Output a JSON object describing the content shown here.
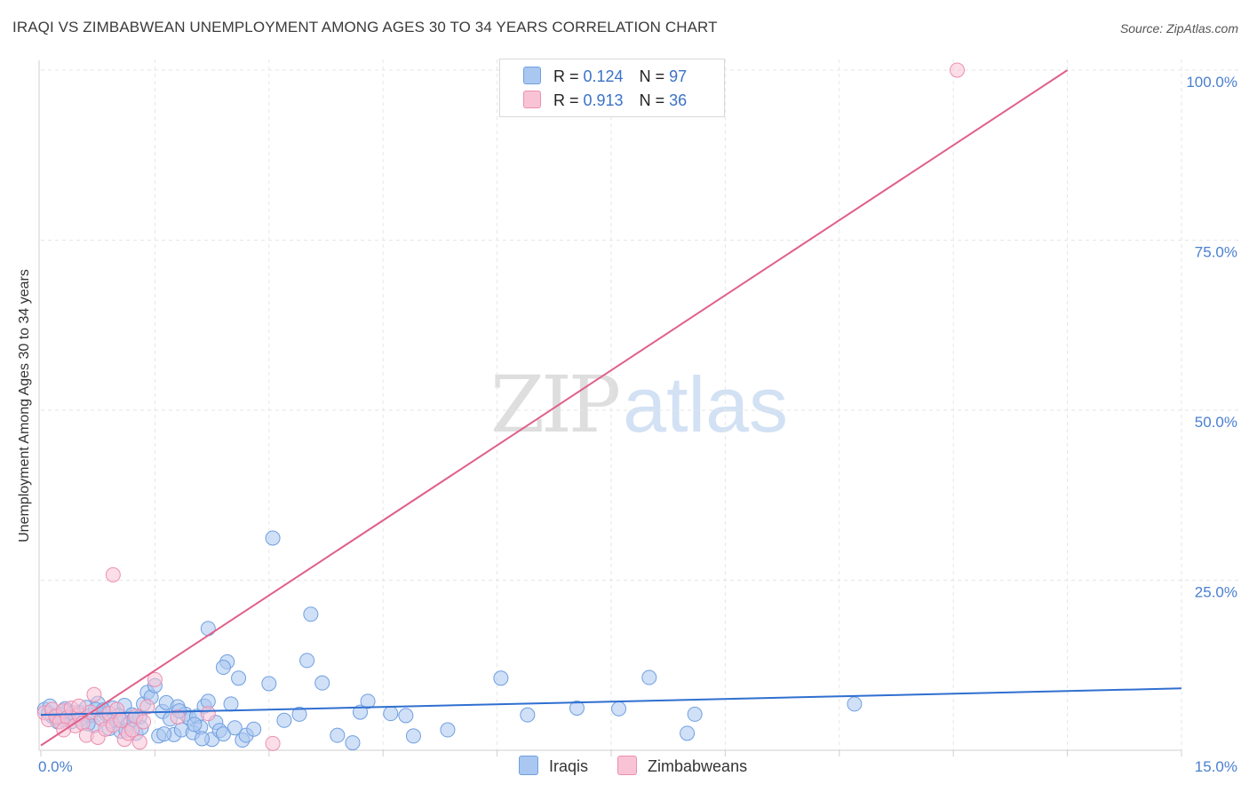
{
  "header": {
    "title": "IRAQI VS ZIMBABWEAN UNEMPLOYMENT AMONG AGES 30 TO 34 YEARS CORRELATION CHART",
    "source": "Source: ZipAtlas.com"
  },
  "watermark": {
    "zip": "ZIP",
    "atlas": "atlas"
  },
  "legend": {
    "rows": [
      {
        "r_label": "R = ",
        "r_value": "0.124",
        "n_label": "N = ",
        "n_value": "97",
        "color": "#a9c7f0",
        "border": "#6f9fe0"
      },
      {
        "r_label": "R = ",
        "r_value": "0.913",
        "n_label": "N = ",
        "n_value": "36",
        "color": "#f9c3d6",
        "border": "#eb8fb0"
      }
    ]
  },
  "bottom_legend": {
    "iraqis": "Iraqis",
    "zimbabweans": "Zimbabweans"
  },
  "chart_data": {
    "type": "scatter",
    "title": "IRAQI VS ZIMBABWEAN UNEMPLOYMENT AMONG AGES 30 TO 34 YEARS CORRELATION CHART",
    "xlabel": "",
    "ylabel": "Unemployment Among Ages 30 to 34 years",
    "xlim": [
      0,
      15
    ],
    "ylim": [
      0,
      100
    ],
    "x_tick_labels": {
      "min": "0.0%",
      "max": "15.0%"
    },
    "y_ticks": [
      {
        "value": 100,
        "label": "100.0%"
      },
      {
        "value": 75,
        "label": "75.0%"
      },
      {
        "value": 50,
        "label": "50.0%"
      },
      {
        "value": 25,
        "label": "25.0%"
      }
    ],
    "colors": {
      "iraqis_fill": "#a9c7f0",
      "iraqis_stroke": "#6f9fe0",
      "iraqis_line": "#2f6fd0",
      "zimbabweans_fill": "#f9c3d6",
      "zimbabweans_stroke": "#eb8fb0",
      "zimbabweans_line": "#e0608a",
      "grid": "#e6e6e6"
    },
    "series": [
      {
        "name": "Iraqis",
        "trend": {
          "x0": 0,
          "y0": 5.2,
          "x1": 15,
          "y1": 9.1
        },
        "points": [
          [
            0.05,
            6.0
          ],
          [
            0.1,
            5.5
          ],
          [
            0.15,
            5.0
          ],
          [
            0.2,
            4.8
          ],
          [
            0.25,
            5.3
          ],
          [
            0.3,
            4.5
          ],
          [
            0.35,
            5.8
          ],
          [
            0.4,
            4.2
          ],
          [
            0.45,
            5.0
          ],
          [
            0.5,
            5.6
          ],
          [
            0.55,
            4.0
          ],
          [
            0.6,
            6.3
          ],
          [
            0.65,
            5.1
          ],
          [
            0.7,
            3.6
          ],
          [
            0.75,
            6.9
          ],
          [
            0.8,
            4.7
          ],
          [
            0.85,
            5.4
          ],
          [
            0.9,
            3.2
          ],
          [
            0.95,
            6.2
          ],
          [
            1.0,
            4.4
          ],
          [
            1.05,
            2.8
          ],
          [
            1.1,
            6.6
          ],
          [
            1.15,
            3.9
          ],
          [
            1.2,
            5.2
          ],
          [
            1.25,
            2.5
          ],
          [
            1.3,
            4.9
          ],
          [
            1.35,
            6.8
          ],
          [
            1.4,
            8.5
          ],
          [
            1.45,
            7.8
          ],
          [
            1.5,
            9.5
          ],
          [
            1.55,
            2.1
          ],
          [
            1.6,
            5.7
          ],
          [
            1.65,
            7.0
          ],
          [
            1.7,
            4.6
          ],
          [
            1.75,
            2.3
          ],
          [
            1.8,
            6.4
          ],
          [
            1.85,
            3.0
          ],
          [
            1.9,
            5.3
          ],
          [
            1.95,
            4.8
          ],
          [
            2.0,
            2.6
          ],
          [
            2.05,
            5.0
          ],
          [
            2.1,
            3.4
          ],
          [
            2.15,
            6.5
          ],
          [
            2.2,
            7.2
          ],
          [
            2.25,
            1.6
          ],
          [
            2.3,
            4.1
          ],
          [
            2.2,
            17.9
          ],
          [
            2.35,
            2.9
          ],
          [
            2.4,
            2.4
          ],
          [
            2.45,
            13.0
          ],
          [
            2.5,
            6.8
          ],
          [
            2.55,
            3.3
          ],
          [
            2.6,
            10.6
          ],
          [
            2.65,
            1.5
          ],
          [
            2.7,
            2.2
          ],
          [
            2.4,
            12.2
          ],
          [
            2.8,
            3.1
          ],
          [
            3.0,
            9.8
          ],
          [
            3.05,
            31.2
          ],
          [
            3.2,
            4.4
          ],
          [
            3.4,
            5.3
          ],
          [
            3.5,
            13.2
          ],
          [
            3.55,
            20.0
          ],
          [
            3.7,
            9.9
          ],
          [
            3.9,
            2.2
          ],
          [
            4.1,
            1.1
          ],
          [
            4.2,
            5.6
          ],
          [
            4.3,
            7.2
          ],
          [
            4.6,
            5.4
          ],
          [
            4.8,
            5.1
          ],
          [
            4.9,
            2.1
          ],
          [
            5.35,
            3.0
          ],
          [
            6.05,
            10.6
          ],
          [
            6.4,
            5.2
          ],
          [
            7.05,
            6.2
          ],
          [
            7.6,
            6.1
          ],
          [
            8.0,
            10.7
          ],
          [
            8.5,
            2.5
          ],
          [
            8.6,
            5.3
          ],
          [
            10.7,
            6.8
          ],
          [
            0.12,
            6.5
          ],
          [
            0.22,
            4.2
          ],
          [
            0.32,
            6.1
          ],
          [
            0.42,
            5.5
          ],
          [
            0.52,
            4.6
          ],
          [
            0.62,
            3.9
          ],
          [
            0.72,
            6.0
          ],
          [
            0.82,
            5.9
          ],
          [
            0.92,
            4.3
          ],
          [
            1.02,
            5.1
          ],
          [
            1.12,
            2.9
          ],
          [
            1.22,
            4.5
          ],
          [
            1.32,
            3.3
          ],
          [
            1.62,
            2.4
          ],
          [
            1.82,
            5.8
          ],
          [
            2.02,
            3.8
          ],
          [
            2.12,
            1.7
          ]
        ]
      },
      {
        "name": "Zimbabweans",
        "trend": {
          "x0": 0,
          "y0": 0.7,
          "x1": 13.5,
          "y1": 100
        },
        "points": [
          [
            0.05,
            5.5
          ],
          [
            0.1,
            4.5
          ],
          [
            0.15,
            6.0
          ],
          [
            0.2,
            5.0
          ],
          [
            0.25,
            4.2
          ],
          [
            0.3,
            5.8
          ],
          [
            0.35,
            4.8
          ],
          [
            0.4,
            6.2
          ],
          [
            0.45,
            3.6
          ],
          [
            0.5,
            5.2
          ],
          [
            0.55,
            4.0
          ],
          [
            0.6,
            2.2
          ],
          [
            0.65,
            5.6
          ],
          [
            0.7,
            8.2
          ],
          [
            0.75,
            1.9
          ],
          [
            0.8,
            4.6
          ],
          [
            0.85,
            3.1
          ],
          [
            0.9,
            5.4
          ],
          [
            0.95,
            3.7
          ],
          [
            1.0,
            6.0
          ],
          [
            1.05,
            4.4
          ],
          [
            1.1,
            1.6
          ],
          [
            1.15,
            2.5
          ],
          [
            1.2,
            3.0
          ],
          [
            1.25,
            5.0
          ],
          [
            1.3,
            1.2
          ],
          [
            1.35,
            4.2
          ],
          [
            1.4,
            6.4
          ],
          [
            1.5,
            10.4
          ],
          [
            0.95,
            25.8
          ],
          [
            1.8,
            4.9
          ],
          [
            2.2,
            5.4
          ],
          [
            3.05,
            1.0
          ],
          [
            12.05,
            100.0
          ],
          [
            0.3,
            3.0
          ],
          [
            0.5,
            6.5
          ]
        ]
      }
    ]
  }
}
